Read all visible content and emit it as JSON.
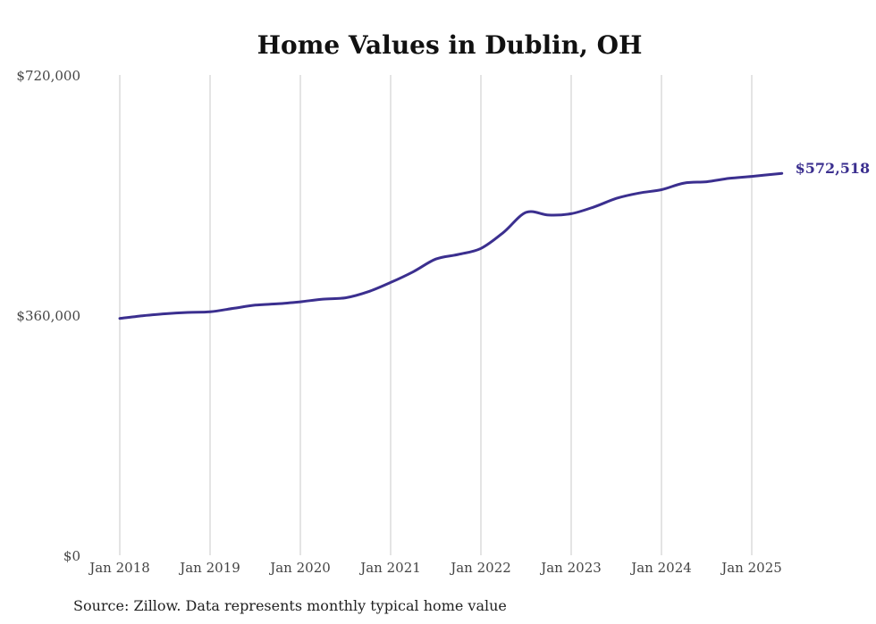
{
  "chart_data": {
    "type": "line",
    "title": "Home Values in Dublin, OH",
    "xlabel": "",
    "ylabel": "",
    "source": "Source: Zillow. Data represents monthly typical home value",
    "ylim": [
      0,
      720000
    ],
    "yticks": [
      0,
      360000,
      720000
    ],
    "ytick_labels": [
      "$0",
      "$360,000",
      "$720,000"
    ],
    "xticks": [
      "2018-01",
      "2019-01",
      "2020-01",
      "2021-01",
      "2022-01",
      "2023-01",
      "2024-01",
      "2025-01"
    ],
    "xtick_labels": [
      "Jan 2018",
      "Jan 2019",
      "Jan 2020",
      "Jan 2021",
      "Jan 2022",
      "Jan 2023",
      "Jan 2024",
      "Jan 2025"
    ],
    "grid": "vertical",
    "colors": {
      "line": "#3b2f8f",
      "end_label": "#3b2f8f"
    },
    "end_label": "$572,518",
    "series": [
      {
        "x": [
          "2018-01",
          "2018-04",
          "2018-07",
          "2018-10",
          "2019-01",
          "2019-04",
          "2019-07",
          "2019-10",
          "2020-01",
          "2020-04",
          "2020-07",
          "2020-10",
          "2021-01",
          "2021-04",
          "2021-07",
          "2021-10",
          "2022-01",
          "2022-04",
          "2022-07",
          "2022-10",
          "2023-01",
          "2023-04",
          "2023-07",
          "2023-10",
          "2024-01",
          "2024-04",
          "2024-07",
          "2024-10",
          "2025-01",
          "2025-05"
        ],
        "values": [
          355000,
          359000,
          362000,
          364000,
          365000,
          370000,
          375000,
          377000,
          380000,
          384000,
          386000,
          395000,
          409000,
          425000,
          444000,
          451000,
          460000,
          484000,
          514000,
          510000,
          512000,
          522000,
          535000,
          543000,
          548000,
          558000,
          560000,
          565000,
          568000,
          572518
        ]
      }
    ]
  }
}
